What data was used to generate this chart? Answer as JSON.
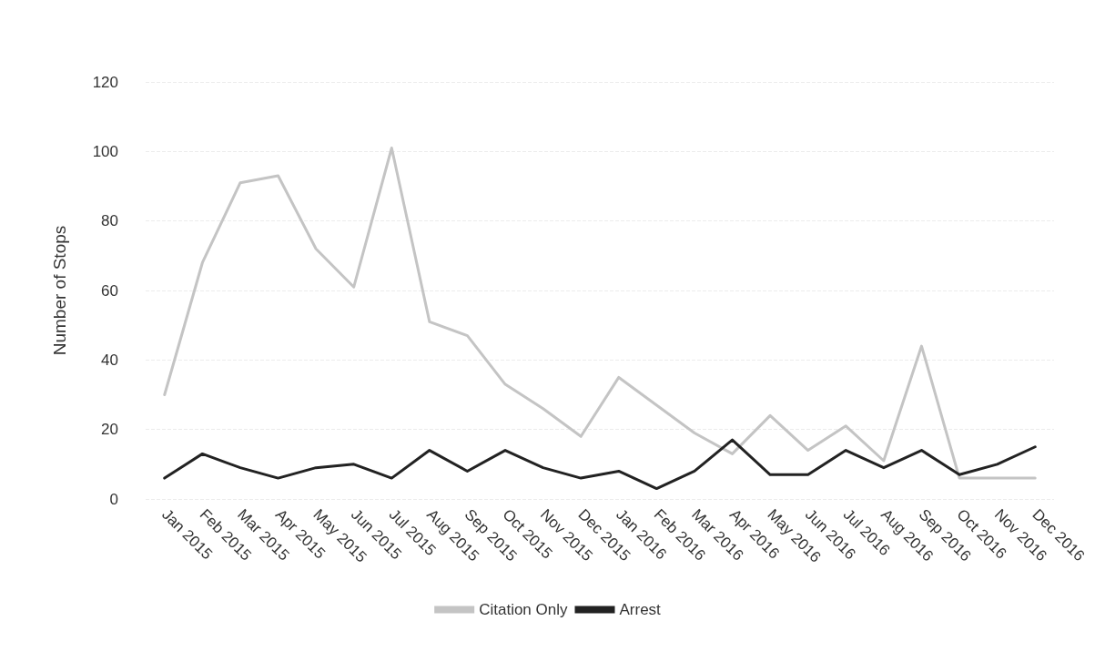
{
  "chart_data": {
    "type": "line",
    "ylabel": "Number of Stops",
    "categories": [
      "Jan 2015",
      "Feb 2015",
      "Mar 2015",
      "Apr 2015",
      "May 2015",
      "Jun 2015",
      "Jul 2015",
      "Aug 2015",
      "Sep 2015",
      "Oct 2015",
      "Nov 2015",
      "Dec 2015",
      "Jan 2016",
      "Feb 2016",
      "Mar 2016",
      "Apr 2016",
      "May 2016",
      "Jun 2016",
      "Jul 2016",
      "Aug 2016",
      "Sep 2016",
      "Oct 2016",
      "Nov 2016",
      "Dec 2016"
    ],
    "series": [
      {
        "name": "Citation Only",
        "color": "#c4c4c4",
        "values": [
          30,
          68,
          91,
          93,
          72,
          61,
          101,
          51,
          47,
          33,
          26,
          18,
          35,
          27,
          19,
          13,
          24,
          14,
          21,
          11,
          44,
          6,
          6,
          6
        ]
      },
      {
        "name": "Arrest",
        "color": "#222222",
        "values": [
          6,
          13,
          9,
          6,
          9,
          10,
          6,
          14,
          8,
          14,
          9,
          6,
          8,
          3,
          8,
          17,
          7,
          7,
          14,
          9,
          14,
          7,
          10,
          15
        ]
      }
    ],
    "ylim": [
      0,
      120
    ],
    "yticks": [
      0,
      20,
      40,
      60,
      80,
      100,
      120
    ],
    "grid": "y",
    "legend": "bottom",
    "marker": "none",
    "line_style": "solid"
  }
}
